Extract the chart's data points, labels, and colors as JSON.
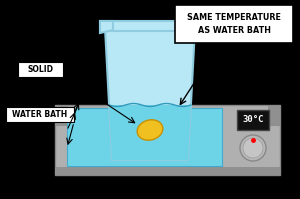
{
  "bg_color": "#000000",
  "hotplate_color": "#b0b0b0",
  "hotplate_edge": "#888888",
  "hotplate_dark": "#909090",
  "bath_water_color": "#6dd4e8",
  "beaker_fill_color": "#b8e8f5",
  "beaker_water_color": "#6dd4e8",
  "beaker_edge_color": "#90cce0",
  "solid_color": "#f0c020",
  "solid_edge": "#c89000",
  "display_bg": "#111111",
  "display_text_color": "#ffffff",
  "knob_color": "#b8b8b8",
  "knob_edge": "#888888",
  "label_bg": "#ffffff",
  "label_edge": "#000000",
  "label_text": "#000000",
  "arrow_color": "#000000",
  "title_text": "SAME TEMPERATURE\nAS WATER BATH",
  "label_solid": "SOLID",
  "label_waterbath": "WATER BATH",
  "temp_display": "30°C"
}
